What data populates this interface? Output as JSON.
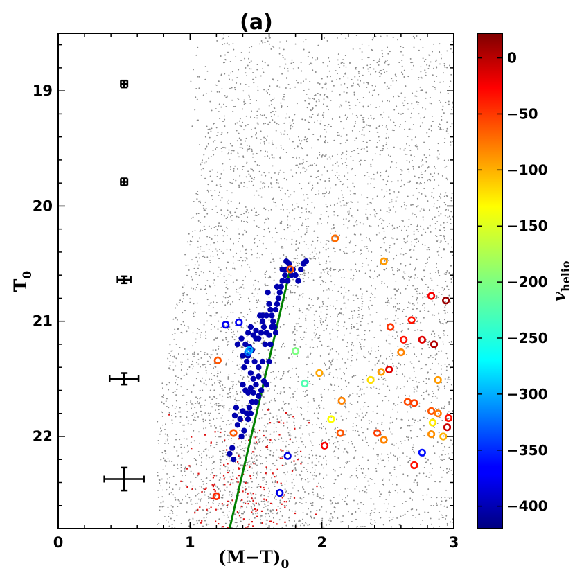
{
  "chart_data": {
    "type": "scatter",
    "title": "(a)",
    "xlabel": "(M−T)",
    "xlabel_sub": "0",
    "ylabel": "T",
    "ylabel_sub": "0",
    "xlim": [
      0,
      3
    ],
    "ylim": [
      22.8,
      18.5
    ],
    "xticks": [
      0,
      1,
      2,
      3
    ],
    "yticks": [
      19,
      20,
      21,
      22
    ],
    "colorbar": {
      "label": "v",
      "label_sub": "helio",
      "range": [
        -420,
        22
      ],
      "ticks": [
        0,
        -50,
        -100,
        -150,
        -200,
        -250,
        -300,
        -350,
        -400
      ],
      "tick_labels": [
        "0",
        "−50",
        "−100",
        "−150",
        "−200",
        "−250",
        "−300",
        "−350",
        "−400"
      ],
      "colormap": "jet"
    },
    "background": {
      "name": "field stars (grey points)",
      "color": "#8a8a8a",
      "count": 5200
    },
    "red_points": {
      "name": "red points",
      "color": "#dd1111",
      "count": 160
    },
    "error_bars": [
      {
        "x": 0.5,
        "y": 18.94,
        "xerr": 0.025,
        "yerr": 0.03
      },
      {
        "x": 0.5,
        "y": 19.79,
        "xerr": 0.025,
        "yerr": 0.03
      },
      {
        "x": 0.5,
        "y": 20.64,
        "xerr": 0.05,
        "yerr": 0.03
      },
      {
        "x": 0.5,
        "y": 21.5,
        "xerr": 0.11,
        "yerr": 0.05
      },
      {
        "x": 0.5,
        "y": 22.37,
        "xerr": 0.15,
        "yerr": 0.1
      }
    ],
    "fit_line": {
      "name": "green fiducial line",
      "color": "#008000",
      "x": [
        1.3,
        1.76
      ],
      "y": [
        22.8,
        20.55
      ]
    },
    "members": [
      [
        1.39,
        21.15,
        -400
      ],
      [
        1.4,
        21.3,
        -400
      ],
      [
        1.42,
        21.2,
        -400
      ],
      [
        1.44,
        21.1,
        -400
      ],
      [
        1.46,
        21.05,
        -400
      ],
      [
        1.48,
        21.12,
        -400
      ],
      [
        1.5,
        21.08,
        -400
      ],
      [
        1.52,
        21.15,
        -400
      ],
      [
        1.54,
        21.1,
        -400
      ],
      [
        1.55,
        20.95,
        -400
      ],
      [
        1.56,
        21.05,
        -400
      ],
      [
        1.58,
        21.1,
        -400
      ],
      [
        1.6,
        21.12,
        -400
      ],
      [
        1.62,
        20.95,
        -400
      ],
      [
        1.63,
        21.0,
        -400
      ],
      [
        1.64,
        21.05,
        -400
      ],
      [
        1.65,
        20.9,
        -400
      ],
      [
        1.66,
        20.85,
        -400
      ],
      [
        1.67,
        20.8,
        -400
      ],
      [
        1.68,
        20.75,
        -400
      ],
      [
        1.69,
        20.7,
        -400
      ],
      [
        1.7,
        20.65,
        -400
      ],
      [
        1.72,
        20.6,
        -400
      ],
      [
        1.73,
        20.55,
        -400
      ],
      [
        1.75,
        20.5,
        -400
      ],
      [
        1.78,
        20.55,
        -400
      ],
      [
        1.8,
        20.6,
        -400
      ],
      [
        1.82,
        20.65,
        -400
      ],
      [
        1.84,
        20.55,
        -400
      ],
      [
        1.86,
        20.5,
        -400
      ],
      [
        1.88,
        20.48,
        -400
      ],
      [
        1.73,
        20.48,
        -400
      ],
      [
        1.6,
        20.85,
        -400
      ],
      [
        1.58,
        20.95,
        -400
      ],
      [
        1.55,
        21.0,
        -400
      ],
      [
        1.53,
        20.95,
        -400
      ],
      [
        1.5,
        21.15,
        -400
      ],
      [
        1.45,
        21.22,
        -400
      ],
      [
        1.43,
        21.35,
        -400
      ],
      [
        1.36,
        21.2,
        -400
      ],
      [
        1.44,
        21.3,
        -400
      ],
      [
        1.46,
        21.45,
        -400
      ],
      [
        1.48,
        21.5,
        -400
      ],
      [
        1.5,
        21.55,
        -400
      ],
      [
        1.52,
        21.48,
        -400
      ],
      [
        1.4,
        21.55,
        -400
      ],
      [
        1.42,
        21.6,
        -400
      ],
      [
        1.44,
        21.62,
        -400
      ],
      [
        1.46,
        21.58,
        -400
      ],
      [
        1.48,
        21.62,
        -400
      ],
      [
        1.5,
        21.7,
        -400
      ],
      [
        1.52,
        21.65,
        -400
      ],
      [
        1.54,
        21.6,
        -400
      ],
      [
        1.56,
        21.52,
        -400
      ],
      [
        1.58,
        21.55,
        -400
      ],
      [
        1.47,
        21.7,
        -400
      ],
      [
        1.45,
        21.75,
        -400
      ],
      [
        1.43,
        21.8,
        -400
      ],
      [
        1.4,
        21.78,
        -400
      ],
      [
        1.38,
        21.85,
        -400
      ],
      [
        1.36,
        21.9,
        -400
      ],
      [
        1.35,
        21.75,
        -400
      ],
      [
        1.34,
        21.82,
        -400
      ],
      [
        1.44,
        21.85,
        -400
      ],
      [
        1.46,
        21.8,
        -400
      ],
      [
        1.41,
        21.95,
        -400
      ],
      [
        1.39,
        22.0,
        -400
      ],
      [
        1.32,
        22.1,
        -400
      ],
      [
        1.3,
        22.15,
        -400
      ],
      [
        1.33,
        22.2,
        -400
      ],
      [
        1.65,
        21.1,
        -400
      ],
      [
        1.62,
        21.05,
        -400
      ],
      [
        1.61,
        21.2,
        -400
      ],
      [
        1.57,
        21.2,
        -400
      ],
      [
        1.6,
        21.35,
        -400
      ],
      [
        1.55,
        21.35,
        -400
      ],
      [
        1.52,
        21.4,
        -400
      ],
      [
        1.49,
        21.35,
        -400
      ],
      [
        1.47,
        21.25,
        -400
      ],
      [
        1.41,
        21.4,
        -400
      ],
      [
        1.59,
        20.75,
        -400
      ],
      [
        1.61,
        20.9,
        -400
      ],
      [
        1.7,
        20.55,
        -400
      ],
      [
        1.77,
        20.6,
        -400
      ],
      [
        1.74,
        20.65,
        -400
      ],
      [
        1.66,
        20.7,
        -400
      ]
    ],
    "rings": [
      [
        1.27,
        21.03,
        -370
      ],
      [
        1.37,
        21.01,
        -370
      ],
      [
        1.44,
        21.27,
        -320
      ],
      [
        1.45,
        21.25,
        -290
      ],
      [
        1.8,
        21.26,
        -200
      ],
      [
        1.87,
        21.54,
        -220
      ],
      [
        1.74,
        22.17,
        -380
      ],
      [
        1.68,
        22.49,
        -375
      ],
      [
        2.76,
        22.14,
        -360
      ],
      [
        1.76,
        20.55,
        -70
      ],
      [
        2.1,
        20.28,
        -80
      ],
      [
        2.47,
        20.48,
        -100
      ],
      [
        2.83,
        20.78,
        -30
      ],
      [
        2.94,
        20.82,
        10
      ],
      [
        2.68,
        20.99,
        -40
      ],
      [
        2.52,
        21.05,
        -55
      ],
      [
        2.62,
        21.16,
        -40
      ],
      [
        2.6,
        21.27,
        -90
      ],
      [
        2.85,
        21.2,
        0
      ],
      [
        2.76,
        21.16,
        -20
      ],
      [
        2.51,
        21.42,
        -20
      ],
      [
        2.45,
        21.44,
        -100
      ],
      [
        1.98,
        21.45,
        -105
      ],
      [
        2.37,
        21.51,
        -130
      ],
      [
        2.88,
        21.51,
        -100
      ],
      [
        1.21,
        21.34,
        -70
      ],
      [
        2.15,
        21.69,
        -90
      ],
      [
        2.65,
        21.7,
        -65
      ],
      [
        2.7,
        21.71,
        -60
      ],
      [
        2.83,
        21.78,
        -70
      ],
      [
        2.88,
        21.8,
        -85
      ],
      [
        2.96,
        21.84,
        -40
      ],
      [
        2.07,
        21.85,
        -145
      ],
      [
        2.84,
        21.88,
        -135
      ],
      [
        2.95,
        21.92,
        -10
      ],
      [
        2.42,
        21.97,
        -60
      ],
      [
        2.83,
        21.98,
        -95
      ],
      [
        2.14,
        21.97,
        -70
      ],
      [
        2.92,
        22.0,
        -110
      ],
      [
        1.33,
        21.97,
        -70
      ],
      [
        2.47,
        22.03,
        -90
      ],
      [
        2.02,
        22.08,
        -30
      ],
      [
        2.7,
        22.25,
        -40
      ],
      [
        1.2,
        22.52,
        -50
      ]
    ]
  }
}
